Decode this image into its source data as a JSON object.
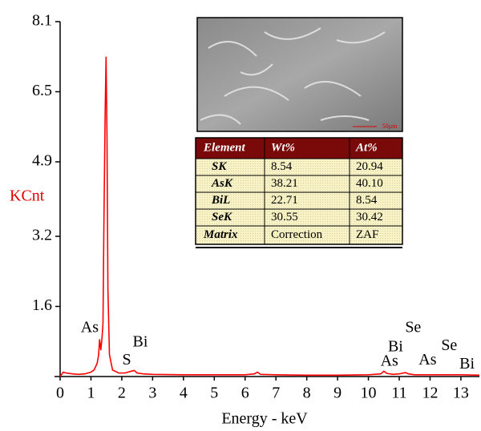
{
  "chart_data": {
    "type": "line",
    "ylabel": "KCnt",
    "xlabel": "Energy - keV",
    "xlim": [
      0,
      13.6
    ],
    "xticks": [
      0,
      1,
      2,
      3,
      4,
      5,
      6,
      7,
      8,
      9,
      10,
      11,
      12,
      13
    ],
    "ylim": [
      0,
      8.1
    ],
    "yticks": [
      1.6,
      3.2,
      4.9,
      6.5,
      8.1
    ],
    "grid": false,
    "series": [
      {
        "color": "#ff0000",
        "x": [
          0,
          0.1,
          0.2,
          0.4,
          0.6,
          0.8,
          1.0,
          1.1,
          1.2,
          1.25,
          1.28,
          1.32,
          1.36,
          1.39,
          1.42,
          1.46,
          1.49,
          1.52,
          1.55,
          1.6,
          1.7,
          1.9,
          2.1,
          2.3,
          2.4,
          2.5,
          2.7,
          3.0,
          4.0,
          5.0,
          6.0,
          6.3,
          6.4,
          6.5,
          7.0,
          8.0,
          9.0,
          10.0,
          10.4,
          10.5,
          10.6,
          10.8,
          11.0,
          11.2,
          11.3,
          11.5,
          12.0,
          12.5,
          13.0,
          13.6
        ],
        "values": [
          0,
          0.1,
          0.08,
          0.06,
          0.05,
          0.06,
          0.1,
          0.15,
          0.3,
          0.5,
          0.85,
          0.6,
          0.9,
          1.2,
          3.5,
          6.0,
          7.3,
          5.5,
          2.0,
          0.5,
          0.15,
          0.08,
          0.08,
          0.12,
          0.14,
          0.08,
          0.06,
          0.05,
          0.04,
          0.04,
          0.04,
          0.06,
          0.1,
          0.05,
          0.04,
          0.03,
          0.03,
          0.04,
          0.06,
          0.12,
          0.07,
          0.05,
          0.06,
          0.09,
          0.06,
          0.04,
          0.04,
          0.04,
          0.04,
          0.03
        ]
      }
    ],
    "annotations": [
      {
        "text": "As",
        "x": 0.96,
        "y": 1.1
      },
      {
        "text": "S",
        "x": 2.16,
        "y": 0.36
      },
      {
        "text": "Bi",
        "x": 2.6,
        "y": 0.77
      },
      {
        "text": "As",
        "x": 10.68,
        "y": 0.33
      },
      {
        "text": "Bi",
        "x": 10.88,
        "y": 0.66
      },
      {
        "text": "Se",
        "x": 11.45,
        "y": 1.1
      },
      {
        "text": "As",
        "x": 11.92,
        "y": 0.36
      },
      {
        "text": "Se",
        "x": 12.62,
        "y": 0.69
      },
      {
        "text": "Bi",
        "x": 13.2,
        "y": 0.27
      }
    ]
  },
  "inset": {
    "scale_bar": "50µm",
    "table": {
      "header": [
        "Element",
        "Wt%",
        "At%"
      ],
      "rows": [
        [
          "SK",
          "8.54",
          "20.94"
        ],
        [
          "AsK",
          "38.21",
          "40.10"
        ],
        [
          "BiL",
          "22.71",
          "8.54"
        ],
        [
          "SeK",
          "30.55",
          "30.42"
        ],
        [
          "Matrix",
          "Correction",
          "ZAF"
        ]
      ]
    }
  }
}
